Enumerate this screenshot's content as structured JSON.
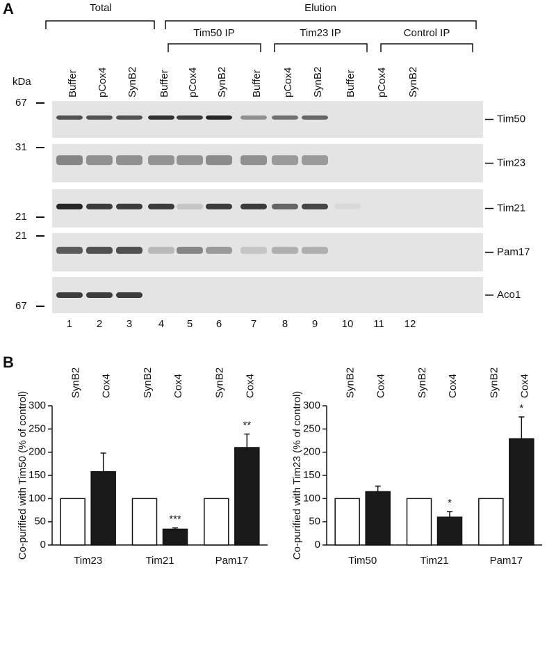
{
  "panel_a_label": "A",
  "panel_b_label": "B",
  "blot": {
    "groups": [
      "Total",
      "Elution"
    ],
    "subgroups": [
      "Tim50 IP",
      "Tim23 IP",
      "Control IP"
    ],
    "kda_label": "kDa",
    "lanes": [
      "Buffer",
      "pCox4",
      "SynB2",
      "Buffer",
      "pCox4",
      "SynB2",
      "Buffer",
      "pCox4",
      "SynB2",
      "Buffer",
      "pCox4",
      "SynB2"
    ],
    "lane_numbers": [
      "1",
      "2",
      "3",
      "4",
      "5",
      "6",
      "7",
      "8",
      "9",
      "10",
      "11",
      "12"
    ],
    "markers": [
      "67",
      "31",
      "21",
      "21",
      "67"
    ],
    "proteins": [
      "Tim50",
      "Tim23",
      "Tim21",
      "Pam17",
      "Aco1"
    ]
  },
  "chart_data": [
    {
      "type": "bar",
      "ylabel": "Co-purified with Tim50 (% of control)",
      "categories": [
        "Tim23",
        "Tim21",
        "Pam17"
      ],
      "series": [
        {
          "name": "SynB2",
          "color": "#ffffff",
          "values": [
            100,
            100,
            100
          ]
        },
        {
          "name": "Cox4",
          "color": "#1a1a1a",
          "values": [
            158,
            34,
            210
          ],
          "errors": [
            40,
            3,
            29
          ],
          "significance": [
            null,
            "***",
            "**"
          ]
        }
      ],
      "ylim": [
        0,
        300
      ],
      "yticks": [
        0,
        50,
        100,
        150,
        200,
        250,
        300
      ]
    },
    {
      "type": "bar",
      "ylabel": "Co-purified with Tim23 (% of control)",
      "categories": [
        "Tim50",
        "Tim21",
        "Pam17"
      ],
      "series": [
        {
          "name": "SynB2",
          "color": "#ffffff",
          "values": [
            100,
            100,
            100
          ]
        },
        {
          "name": "Cox4",
          "color": "#1a1a1a",
          "values": [
            115,
            60,
            229
          ],
          "errors": [
            12,
            12,
            47
          ],
          "significance": [
            null,
            "*",
            "*"
          ]
        }
      ],
      "ylim": [
        0,
        300
      ],
      "yticks": [
        0,
        50,
        100,
        150,
        200,
        250,
        300
      ]
    }
  ]
}
